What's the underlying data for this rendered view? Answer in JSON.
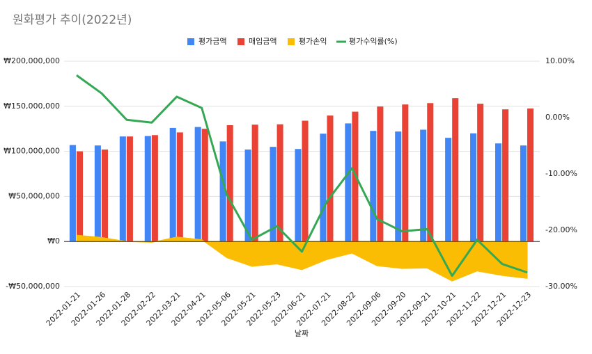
{
  "chart_data": {
    "type": "combo",
    "title": "원화평가 추이(2022년)",
    "xlabel": "날짜",
    "categories": [
      "2022-01-21",
      "2022-01-26",
      "2022-01-28",
      "2022-02-22",
      "2022-03-21",
      "2022-04-21",
      "2022-05-06",
      "2022-05-21",
      "2022-05-23",
      "2022-06-21",
      "2022-07-21",
      "2022-08-22",
      "2022-09-06",
      "2022-09-20",
      "2022-09-21",
      "2022-10-21",
      "2022-11-22",
      "2022-12-21",
      "2022-12-23"
    ],
    "series": [
      {
        "name": "평가금액",
        "type": "bar",
        "color": "#4285f4",
        "values": [
          107000000,
          106500000,
          116500000,
          117000000,
          126000000,
          127000000,
          111000000,
          102000000,
          105000000,
          102600000,
          119600000,
          131000000,
          122700000,
          122000000,
          124000000,
          115000000,
          120000000,
          108800000,
          106500000
        ]
      },
      {
        "name": "매입금액",
        "type": "bar",
        "color": "#ea4335",
        "values": [
          100000000,
          102000000,
          116500000,
          118000000,
          121000000,
          125000000,
          129000000,
          129600000,
          130000000,
          134000000,
          139700000,
          144000000,
          149700000,
          152000000,
          153500000,
          159000000,
          152800000,
          146600000,
          147500000
        ]
      },
      {
        "name": "평가손익",
        "type": "area",
        "color": "#fbbc04",
        "values": [
          7000000,
          4500000,
          0,
          -1000000,
          5000000,
          2000000,
          -18000000,
          -27600000,
          -25000000,
          -31400000,
          -20000000,
          -13000000,
          -27000000,
          -30000000,
          -29500000,
          -44000000,
          -32800000,
          -37800000,
          -41000000
        ]
      },
      {
        "name": "평가수익률(%)",
        "type": "line",
        "axis": "y2",
        "color": "#34a853",
        "values": [
          7.5,
          4.3,
          -0.4,
          -0.9,
          3.7,
          1.7,
          -13.7,
          -21.7,
          -19.3,
          -23.8,
          -14.9,
          -9,
          -18,
          -20.2,
          -19.8,
          -28.1,
          -21.7,
          -26,
          -27.5
        ]
      }
    ],
    "ylim": [
      -50000000,
      200000000
    ],
    "yticks": [
      {
        "value": -50000000,
        "label": "-₩50,000,000"
      },
      {
        "value": 0,
        "label": "₩0"
      },
      {
        "value": 50000000,
        "label": "₩50,000,000"
      },
      {
        "value": 100000000,
        "label": "₩100,000,000"
      },
      {
        "value": 150000000,
        "label": "₩150,000,000"
      },
      {
        "value": 200000000,
        "label": "₩200,000,000"
      }
    ],
    "y2lim": [
      -30,
      10
    ],
    "y2ticks": [
      {
        "value": -30,
        "label": "-30.00%"
      },
      {
        "value": -20,
        "label": "-20.00%"
      },
      {
        "value": -10,
        "label": "-10.00%"
      },
      {
        "value": 0,
        "label": "0.00%"
      },
      {
        "value": 10,
        "label": "10.00%"
      }
    ],
    "grid": true,
    "legend": "top"
  }
}
